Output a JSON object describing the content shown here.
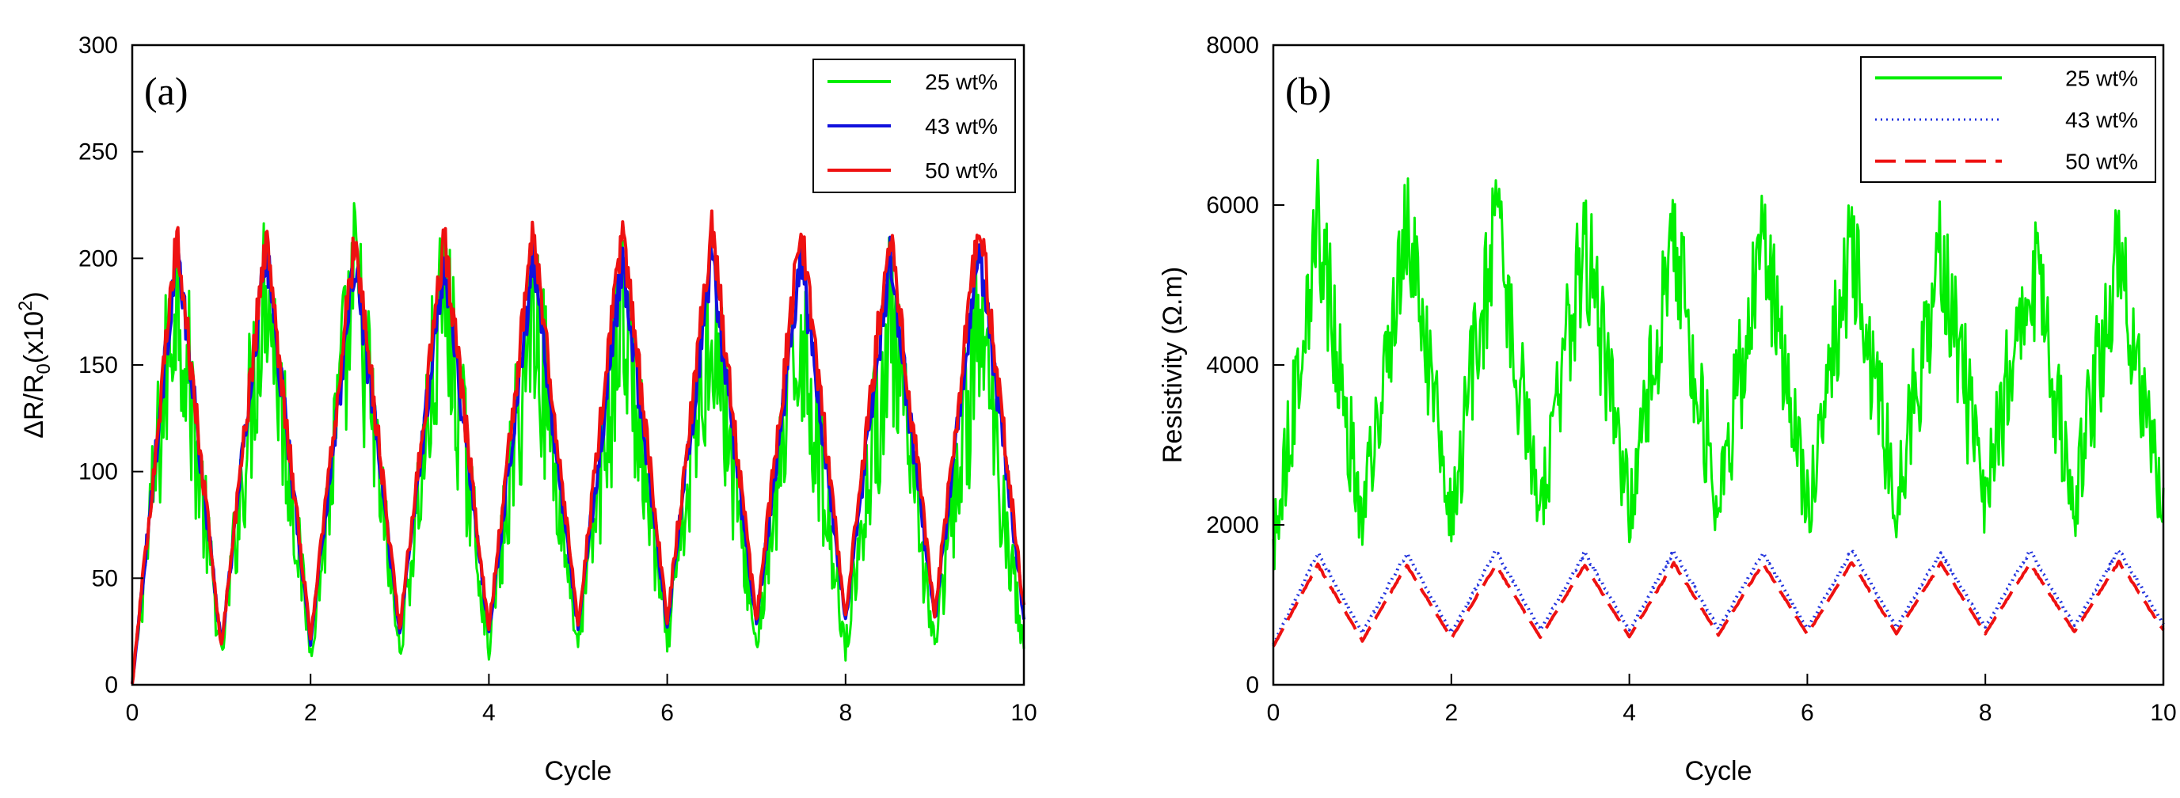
{
  "chart_data": [
    {
      "id": "a",
      "type": "line",
      "panel_label": "(a)",
      "title": "",
      "xlabel": "Cycle",
      "ylabel": "ΔR/R",
      "ylabel_sub": "0",
      "ylabel_tail": "(x10",
      "ylabel_sup": "2",
      "ylabel_close": ")",
      "xlim": [
        0,
        10
      ],
      "ylim": [
        0,
        300
      ],
      "xticks": [
        0,
        2,
        4,
        6,
        8,
        10
      ],
      "yticks": [
        0,
        50,
        100,
        150,
        200,
        250,
        300
      ],
      "legend_position": "top-right",
      "legend_style": "solid",
      "series": [
        {
          "name": "25 wt%",
          "color": "#00ee00",
          "style": "solid",
          "x": [
            0,
            0.5,
            1,
            1.5,
            2,
            2.5,
            3,
            3.5,
            4,
            4.5,
            5,
            5.5,
            6,
            6.5,
            7,
            7.5,
            8,
            8.5,
            9,
            9.5,
            10
          ],
          "y": [
            0,
            190,
            12,
            195,
            15,
            190,
            15,
            185,
            18,
            180,
            18,
            175,
            18,
            175,
            18,
            170,
            18,
            170,
            18,
            170,
            15
          ],
          "noise": 45
        },
        {
          "name": "43 wt%",
          "color": "#1111dd",
          "style": "solid",
          "x": [
            0,
            0.5,
            1,
            1.5,
            2,
            2.5,
            3,
            3.5,
            4,
            4.5,
            5,
            5.5,
            6,
            6.5,
            7,
            7.5,
            8,
            8.5,
            9,
            9.5,
            10
          ],
          "y": [
            0,
            205,
            18,
            205,
            20,
            200,
            24,
            200,
            24,
            200,
            26,
            200,
            28,
            200,
            28,
            200,
            30,
            200,
            30,
            205,
            32
          ],
          "noise": 10
        },
        {
          "name": "50 wt%",
          "color": "#ee1111",
          "style": "solid",
          "x": [
            0,
            0.5,
            1,
            1.5,
            2,
            2.5,
            3,
            3.5,
            4,
            4.5,
            5,
            5.5,
            6,
            6.5,
            7,
            7.5,
            8,
            8.5,
            9,
            9.5,
            10
          ],
          "y": [
            0,
            210,
            18,
            210,
            22,
            210,
            26,
            210,
            26,
            215,
            28,
            215,
            30,
            215,
            30,
            215,
            33,
            215,
            33,
            220,
            36
          ],
          "noise": 10
        }
      ]
    },
    {
      "id": "b",
      "type": "line",
      "panel_label": "(b)",
      "title": "",
      "xlabel": "Cycle",
      "ylabel": "Resistivity (Ω.m)",
      "xlim": [
        0,
        10
      ],
      "ylim": [
        0,
        8000
      ],
      "xticks": [
        0,
        2,
        4,
        6,
        8,
        10
      ],
      "yticks": [
        0,
        2000,
        4000,
        6000,
        8000
      ],
      "legend_position": "top-right",
      "legend_style": "styled",
      "series": [
        {
          "name": "25 wt%",
          "color": "#00ee00",
          "style": "solid",
          "x": [
            0,
            0.5,
            1,
            1.5,
            2,
            2.5,
            3,
            3.5,
            4,
            4.5,
            5,
            5.5,
            6,
            6.5,
            7,
            7.5,
            8,
            8.5,
            9,
            9.5,
            10
          ],
          "y": [
            1700,
            5800,
            2050,
            5800,
            2100,
            5700,
            2150,
            5600,
            2200,
            5600,
            2200,
            5600,
            2200,
            5500,
            2250,
            5500,
            2250,
            5400,
            2300,
            5400,
            2200
          ],
          "noise": 800
        },
        {
          "name": "43 wt%",
          "color": "#2233dd",
          "style": "dotted",
          "x": [
            0,
            0.5,
            1,
            1.5,
            2,
            2.5,
            3,
            3.5,
            4,
            4.5,
            5,
            5.5,
            6,
            6.5,
            7,
            7.5,
            8,
            8.5,
            9,
            9.5,
            10
          ],
          "y": [
            500,
            1650,
            650,
            1650,
            650,
            1680,
            680,
            1650,
            680,
            1670,
            700,
            1650,
            700,
            1680,
            720,
            1650,
            720,
            1670,
            740,
            1680,
            760
          ],
          "noise": 60
        },
        {
          "name": "50 wt%",
          "color": "#ee1111",
          "style": "dashed",
          "x": [
            0,
            0.5,
            1,
            1.5,
            2,
            2.5,
            3,
            3.5,
            4,
            4.5,
            5,
            5.5,
            6,
            6.5,
            7,
            7.5,
            8,
            8.5,
            9,
            9.5,
            10
          ],
          "y": [
            480,
            1500,
            550,
            1500,
            580,
            1500,
            590,
            1500,
            600,
            1520,
            620,
            1520,
            630,
            1530,
            640,
            1520,
            640,
            1520,
            660,
            1540,
            680
          ],
          "noise": 30
        }
      ]
    }
  ]
}
